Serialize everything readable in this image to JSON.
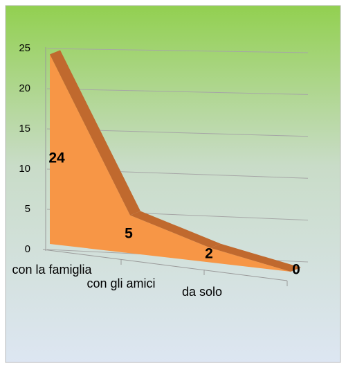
{
  "chart_data": {
    "type": "area3d",
    "categories": [
      "con la famiglia",
      "con gli amici",
      "da solo",
      null
    ],
    "values": [
      24,
      5,
      2,
      0
    ],
    "color": "#f79646",
    "top_color": "#c0692e",
    "ylim": [
      0,
      25
    ],
    "yticks": [
      0,
      5,
      10,
      15,
      20,
      25
    ],
    "grid": true
  }
}
